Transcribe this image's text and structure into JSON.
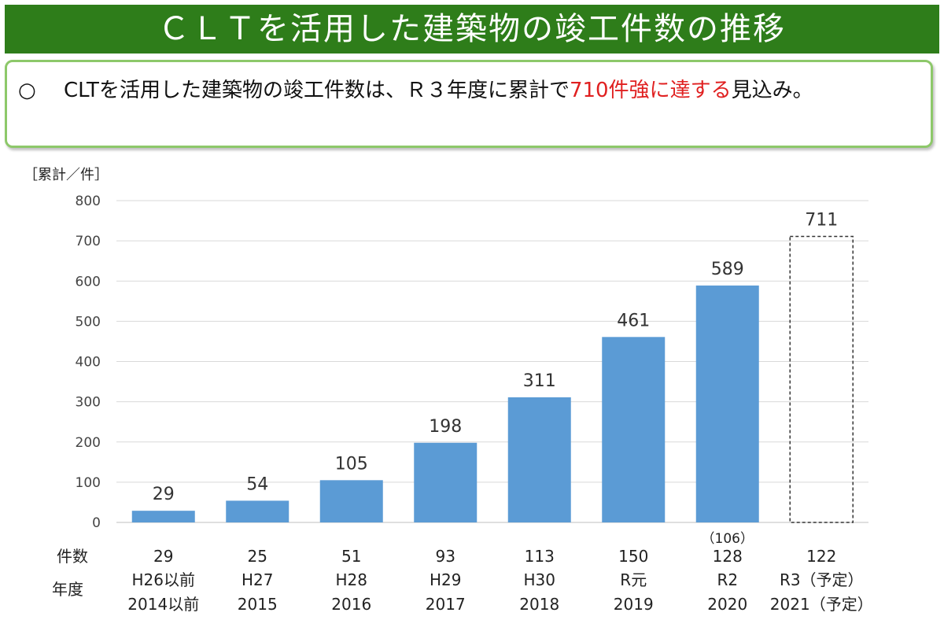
{
  "title": "ＣＬＴを活用した建築物の竣工件数の推移",
  "summary": {
    "bullet": "○",
    "text_before": "CLTを活用した建築物の竣工件数は、Ｒ３年度に累計で",
    "highlight": "710件強に達する",
    "text_after": "見込み。"
  },
  "colors": {
    "title_bg": "#2e7d1a",
    "box_border": "#8dc86a",
    "bar": "#5b9bd5",
    "highlight": "#e02020"
  },
  "chart_data": {
    "type": "bar",
    "ylabel": "［累計／件］",
    "ylim": [
      0,
      800
    ],
    "yticks": [
      0,
      100,
      200,
      300,
      400,
      500,
      600,
      700,
      800
    ],
    "grid": true,
    "values": [
      29,
      54,
      105,
      198,
      311,
      461,
      589,
      711
    ],
    "projected_index": 7,
    "row_labels": {
      "count": "件数",
      "year": "年度"
    },
    "counts": [
      "29",
      "25",
      "51",
      "93",
      "113",
      "150",
      "128",
      "122"
    ],
    "count_notes": [
      "",
      "",
      "",
      "",
      "",
      "",
      "（106）",
      ""
    ],
    "categories_era": [
      "H26以前",
      "H27",
      "H28",
      "H29",
      "H30",
      "R元",
      "R2",
      "R3（予定）"
    ],
    "categories_year": [
      "2014以前",
      "2015",
      "2016",
      "2017",
      "2018",
      "2019",
      "2020",
      "2021（予定）"
    ]
  }
}
